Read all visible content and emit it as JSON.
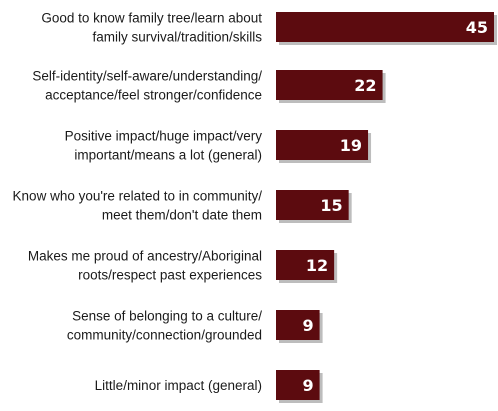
{
  "chart_data": {
    "type": "bar",
    "orientation": "horizontal",
    "categories": [
      [
        "Good to know family tree/learn about",
        "family survival/tradition/skills"
      ],
      [
        "Self-identity/self-aware/understanding/",
        "acceptance/feel stronger/confidence"
      ],
      [
        "Positive impact/huge impact/very",
        "important/means a lot (general)"
      ],
      [
        "Know who you're related to in community/",
        "meet them/don't date them"
      ],
      [
        "Makes me proud of ancestry/Aboriginal",
        "roots/respect past experiences"
      ],
      [
        "Sense of belonging to a culture/",
        "community/connection/grounded"
      ],
      [
        "Little/minor impact (general)"
      ]
    ],
    "values": [
      45,
      22,
      19,
      15,
      12,
      9,
      9
    ],
    "data_labels": [
      "45",
      "22",
      "19",
      "15",
      "12",
      "9",
      "9"
    ],
    "xlim": [
      0,
      45
    ],
    "grid": false,
    "legend": "none",
    "colors": {
      "bar": "#5c0b0f",
      "bar_shadow": "#bdbdbd",
      "value_text": "#ffffff",
      "label_text": "#1a1a1a"
    }
  }
}
